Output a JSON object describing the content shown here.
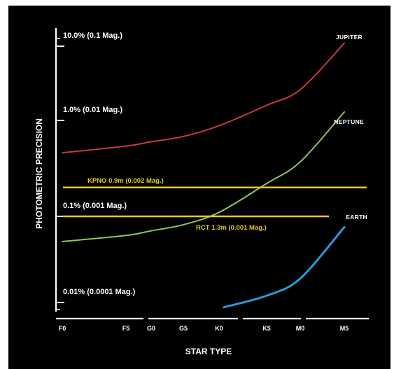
{
  "chart_data": {
    "type": "line",
    "xlabel": "STAR TYPE",
    "ylabel": "PHOTOMETRIC PRECISION",
    "y_scale": "log",
    "ylim": [
      0.01,
      10.0
    ],
    "x_categories": [
      "F0",
      "F5",
      "G0",
      "G5",
      "K0",
      "K5",
      "M0",
      "M5"
    ],
    "y_tick_labels": [
      {
        "value": 10.0,
        "label": "10.0% (0.1 Mag.)"
      },
      {
        "value": 1.0,
        "label": "1.0% (0.01 Mag.)"
      },
      {
        "value": 0.1,
        "label": "0.1% (0.001 Mag.)"
      },
      {
        "value": 0.01,
        "label": "0.01% (0.0001 Mag.)"
      }
    ],
    "series": [
      {
        "name": "Jupiter",
        "color": "#c8393c",
        "points": [
          {
            "x": "F0",
            "y": 0.46
          },
          {
            "x": "F5",
            "y": 0.54
          },
          {
            "x": "G0",
            "y": 0.6
          },
          {
            "x": "G5",
            "y": 0.68
          },
          {
            "x": "K0",
            "y": 0.88
          },
          {
            "x": "K5",
            "y": 1.6
          },
          {
            "x": "M0",
            "y": 2.6
          },
          {
            "x": "M5",
            "y": 11.0
          }
        ]
      },
      {
        "name": "Neptune",
        "color": "#8fc45a",
        "points": [
          {
            "x": "F0",
            "y": 0.051
          },
          {
            "x": "F5",
            "y": 0.06
          },
          {
            "x": "G0",
            "y": 0.068
          },
          {
            "x": "G5",
            "y": 0.08
          },
          {
            "x": "K0",
            "y": 0.11
          },
          {
            "x": "K5",
            "y": 0.22
          },
          {
            "x": "M0",
            "y": 0.37
          },
          {
            "x": "M5",
            "y": 1.3
          }
        ]
      },
      {
        "name": "Earth",
        "color": "#2b9ad6",
        "points": [
          {
            "x": "K0.5",
            "y": 0.0088
          },
          {
            "x": "K5",
            "y": 0.012
          },
          {
            "x": "M0",
            "y": 0.019
          },
          {
            "x": "M5",
            "y": 0.075
          }
        ]
      }
    ],
    "reference_lines": [
      {
        "label": "KPNO 0.9m (0.002 Mag.)",
        "y": 0.2,
        "color": "#e9c81c"
      },
      {
        "label": "RCT 1.3m (0.001 Mag.)",
        "y": 0.1,
        "color": "#e9c81c"
      }
    ]
  }
}
